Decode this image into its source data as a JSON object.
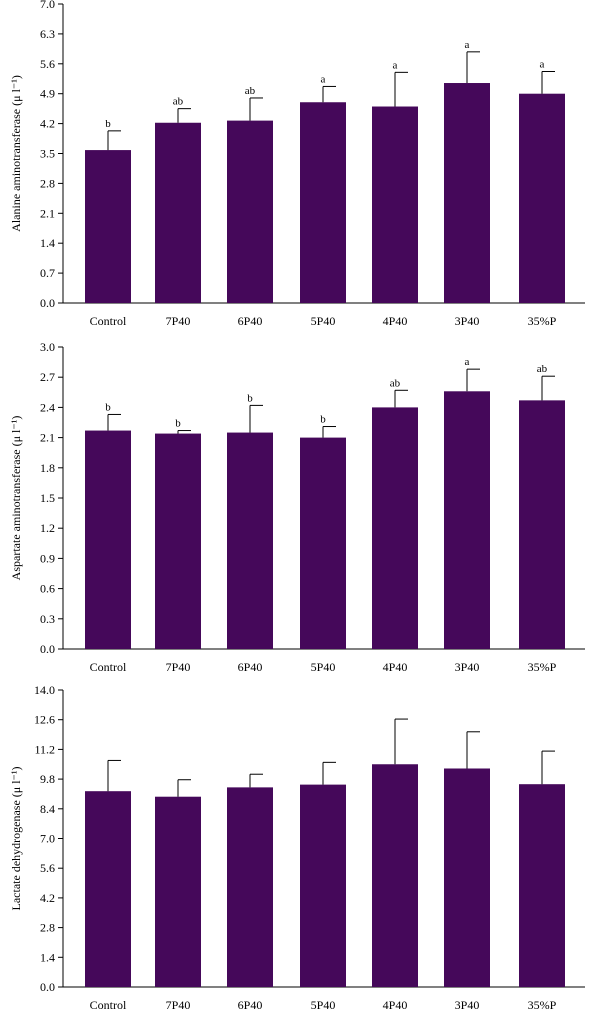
{
  "chart_data": [
    {
      "type": "bar",
      "categories": [
        "Control",
        "7P40",
        "6P40",
        "5P40",
        "4P40",
        "3P40",
        "35%P"
      ],
      "values": [
        3.58,
        4.22,
        4.27,
        4.7,
        4.6,
        5.15,
        4.9
      ],
      "errors": [
        0.45,
        0.33,
        0.53,
        0.37,
        0.8,
        0.73,
        0.52
      ],
      "significance": [
        "b",
        "ab",
        "ab",
        "a",
        "a",
        "a",
        "a"
      ],
      "ylabel": "Alanine aminotransferase (μ l⁻¹)",
      "ylim": [
        0,
        7.0
      ],
      "yticks": [
        "0.0",
        "0.7",
        "1.4",
        "2.1",
        "2.8",
        "3.5",
        "4.2",
        "4.9",
        "5.6",
        "6.3",
        "7.0"
      ],
      "grid": false,
      "color": "#45085a"
    },
    {
      "type": "bar",
      "categories": [
        "Control",
        "7P40",
        "6P40",
        "5P40",
        "4P40",
        "3P40",
        "35%P"
      ],
      "values": [
        2.17,
        2.14,
        2.15,
        2.1,
        2.4,
        2.56,
        2.47
      ],
      "errors": [
        0.16,
        0.03,
        0.27,
        0.11,
        0.17,
        0.22,
        0.24
      ],
      "significance": [
        "b",
        "b",
        "b",
        "b",
        "ab",
        "a",
        "ab"
      ],
      "ylabel": "Aspartate aminotransferase (μ l⁻¹)",
      "ylim": [
        0,
        3.0
      ],
      "yticks": [
        "0.0",
        "0.3",
        "0.6",
        "0.9",
        "1.2",
        "1.5",
        "1.8",
        "2.1",
        "2.4",
        "2.7",
        "3.0"
      ],
      "grid": false,
      "color": "#45085a"
    },
    {
      "type": "bar",
      "categories": [
        "Control",
        "7P40",
        "6P40",
        "5P40",
        "4P40",
        "3P40",
        "35%P"
      ],
      "values": [
        9.23,
        8.97,
        9.41,
        9.54,
        10.5,
        10.3,
        9.56
      ],
      "errors": [
        1.45,
        0.8,
        0.62,
        1.05,
        2.13,
        1.73,
        1.56
      ],
      "significance": [
        "",
        "",
        "",
        "",
        "",
        "",
        ""
      ],
      "ylabel": "Lactate dehydrogenase (μ l⁻¹)",
      "ylim": [
        0,
        14.0
      ],
      "yticks": [
        "0.0",
        "1.4",
        "2.8",
        "4.2",
        "5.6",
        "7.0",
        "8.4",
        "9.8",
        "11.2",
        "12.6",
        "14.0"
      ],
      "grid": false,
      "color": "#45085a"
    }
  ]
}
